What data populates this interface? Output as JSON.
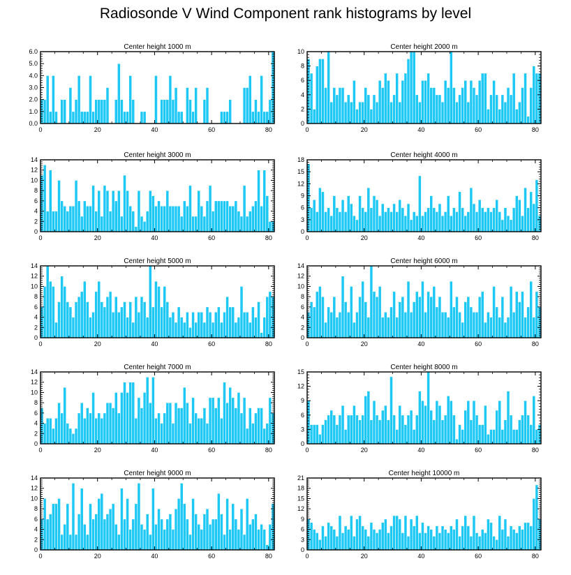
{
  "title": "Radiosonde V Wind Component rank histograms by level",
  "colors": {
    "bar": "#1ec8f5",
    "bar_edge": "#ffffff",
    "axis": "#000000"
  },
  "chart_data": [
    {
      "type": "bar",
      "title": "Center height 1000 m",
      "xlim": [
        0,
        82
      ],
      "xticks": [
        0,
        20,
        40,
        60,
        80
      ],
      "ylim": [
        0,
        6
      ],
      "yticks": [
        0,
        1,
        2,
        3,
        4,
        5,
        6
      ],
      "ytick_labels": [
        "0.0",
        "1.0",
        "2.0",
        "3.0",
        "4.0",
        "5.0",
        "6.0"
      ],
      "values": [
        2,
        2,
        4,
        1,
        4,
        1,
        0,
        2,
        2,
        0,
        3,
        1,
        2,
        4,
        1,
        1,
        1,
        4,
        1,
        2,
        2,
        2,
        2,
        3,
        0,
        0,
        2,
        5,
        2,
        1,
        1,
        4,
        2,
        0,
        0,
        1,
        1,
        0,
        0,
        0,
        4,
        0,
        2,
        2,
        2,
        4,
        2,
        3,
        1,
        1,
        0,
        3,
        2,
        1,
        3,
        0,
        0,
        2,
        3,
        0,
        0,
        0,
        0,
        1,
        1,
        1,
        2,
        0,
        0,
        0,
        0,
        3,
        3,
        4,
        1,
        2,
        1,
        4,
        1,
        1,
        2,
        6
      ]
    },
    {
      "type": "bar",
      "title": "Center height 2000 m",
      "xlim": [
        0,
        82
      ],
      "xticks": [
        0,
        20,
        40,
        60,
        80
      ],
      "ylim": [
        0,
        10
      ],
      "yticks": [
        0,
        2,
        4,
        6,
        8,
        10
      ],
      "ytick_labels": [
        "0",
        "2",
        "4",
        "6",
        "8",
        "10"
      ],
      "values": [
        9,
        7,
        2,
        8,
        9,
        9,
        5,
        10,
        3,
        5,
        4,
        5,
        5,
        3,
        4,
        3,
        6,
        2,
        3,
        3,
        5,
        4,
        2,
        4,
        3,
        6,
        5,
        7,
        6,
        3,
        4,
        7,
        3,
        6,
        7,
        9,
        10,
        10,
        4,
        3,
        6,
        6,
        7,
        5,
        5,
        4,
        4,
        3,
        6,
        5,
        10,
        5,
        3,
        4,
        5,
        6,
        3,
        6,
        5,
        4,
        6,
        7,
        7,
        2,
        4,
        6,
        4,
        2,
        4,
        3,
        5,
        4,
        7,
        2,
        3,
        5,
        7,
        1,
        5,
        8,
        7,
        7
      ]
    },
    {
      "type": "bar",
      "title": "Center height 3000 m",
      "xlim": [
        0,
        82
      ],
      "xticks": [
        0,
        20,
        40,
        60,
        80
      ],
      "ylim": [
        0,
        14
      ],
      "yticks": [
        0,
        2,
        4,
        6,
        8,
        10,
        12,
        14
      ],
      "ytick_labels": [
        "0",
        "2",
        "4",
        "6",
        "8",
        "10",
        "12",
        "14"
      ],
      "values": [
        11,
        13,
        4,
        12,
        4,
        4,
        10,
        6,
        5,
        4,
        5,
        5,
        10,
        6,
        3,
        6,
        5,
        5,
        9,
        4,
        8,
        3,
        9,
        8,
        4,
        8,
        6,
        8,
        3,
        11,
        8,
        5,
        4,
        1,
        8,
        3,
        2,
        4,
        8,
        7,
        5,
        6,
        5,
        5,
        8,
        5,
        5,
        5,
        5,
        3,
        6,
        5,
        9,
        3,
        3,
        8,
        5,
        3,
        6,
        9,
        4,
        6,
        6,
        6,
        6,
        6,
        5,
        5,
        6,
        4,
        3,
        9,
        3,
        4,
        5,
        6,
        12,
        5,
        12,
        7,
        2,
        2
      ]
    },
    {
      "type": "bar",
      "title": "Center height 4000 m",
      "xlim": [
        0,
        82
      ],
      "xticks": [
        0,
        20,
        40,
        60,
        80
      ],
      "ylim": [
        0,
        18
      ],
      "yticks": [
        0,
        3,
        6,
        9,
        12,
        15,
        18
      ],
      "ytick_labels": [
        "0",
        "3",
        "6",
        "9",
        "12",
        "15",
        "18"
      ],
      "values": [
        17,
        6,
        8,
        5,
        11,
        10,
        5,
        6,
        4,
        9,
        6,
        5,
        8,
        5,
        9,
        7,
        4,
        3,
        9,
        6,
        5,
        11,
        6,
        9,
        8,
        4,
        7,
        5,
        6,
        5,
        7,
        5,
        8,
        6,
        4,
        7,
        3,
        5,
        4,
        14,
        4,
        5,
        6,
        9,
        6,
        5,
        7,
        4,
        5,
        9,
        4,
        6,
        5,
        10,
        6,
        4,
        5,
        11,
        7,
        5,
        8,
        6,
        5,
        6,
        5,
        6,
        8,
        5,
        3,
        6,
        4,
        3,
        6,
        9,
        8,
        4,
        11,
        6,
        10,
        7,
        13,
        4
      ]
    },
    {
      "type": "bar",
      "title": "Center height 5000 m",
      "xlim": [
        0,
        82
      ],
      "xticks": [
        0,
        20,
        40,
        60,
        80
      ],
      "ylim": [
        0,
        14
      ],
      "yticks": [
        0,
        2,
        4,
        6,
        8,
        10,
        12,
        14
      ],
      "ytick_labels": [
        "0",
        "2",
        "4",
        "6",
        "8",
        "10",
        "12",
        "14"
      ],
      "values": [
        6,
        10,
        14,
        11,
        10,
        3,
        7,
        12,
        10,
        7,
        6,
        4,
        7,
        8,
        9,
        11,
        7,
        4,
        5,
        9,
        11,
        7,
        6,
        8,
        9,
        5,
        8,
        5,
        6,
        7,
        4,
        7,
        3,
        8,
        5,
        8,
        7,
        4,
        14,
        6,
        11,
        10,
        6,
        10,
        7,
        4,
        5,
        3,
        6,
        4,
        3,
        5,
        2,
        5,
        3,
        5,
        5,
        3,
        6,
        5,
        3,
        5,
        6,
        3,
        5,
        8,
        6,
        6,
        3,
        4,
        10,
        5,
        5,
        3,
        6,
        4,
        7,
        1,
        4,
        8,
        9,
        8
      ]
    },
    {
      "type": "bar",
      "title": "Center height 6000 m",
      "xlim": [
        0,
        82
      ],
      "xticks": [
        0,
        20,
        40,
        60,
        80
      ],
      "ylim": [
        0,
        14
      ],
      "yticks": [
        0,
        2,
        4,
        6,
        8,
        10,
        12,
        14
      ],
      "ytick_labels": [
        "0",
        "2",
        "4",
        "6",
        "8",
        "10",
        "12",
        "14"
      ],
      "values": [
        5,
        7,
        6,
        9,
        10,
        8,
        3,
        6,
        5,
        8,
        4,
        5,
        12,
        7,
        5,
        10,
        3,
        5,
        8,
        11,
        7,
        4,
        14,
        9,
        8,
        10,
        4,
        5,
        4,
        6,
        9,
        4,
        7,
        8,
        5,
        11,
        5,
        7,
        9,
        8,
        11,
        5,
        9,
        8,
        10,
        6,
        8,
        5,
        5,
        4,
        11,
        6,
        8,
        5,
        3,
        7,
        8,
        6,
        5,
        5,
        8,
        9,
        3,
        5,
        4,
        10,
        6,
        4,
        8,
        3,
        4,
        10,
        5,
        9,
        7,
        9,
        4,
        6,
        11,
        4,
        9,
        6
      ]
    },
    {
      "type": "bar",
      "title": "Center height 7000 m",
      "xlim": [
        0,
        82
      ],
      "xticks": [
        0,
        20,
        40,
        60,
        80
      ],
      "ylim": [
        0,
        14
      ],
      "yticks": [
        0,
        2,
        4,
        6,
        8,
        10,
        12,
        14
      ],
      "ytick_labels": [
        "0",
        "2",
        "4",
        "6",
        "8",
        "10",
        "12",
        "14"
      ],
      "values": [
        7,
        4,
        5,
        5,
        3,
        5,
        8,
        6,
        11,
        4,
        3,
        2,
        3,
        6,
        8,
        5,
        7,
        6,
        10,
        5,
        6,
        5,
        6,
        8,
        8,
        7,
        10,
        6,
        10,
        12,
        10,
        12,
        12,
        5,
        9,
        7,
        10,
        13,
        8,
        13,
        5,
        6,
        4,
        6,
        8,
        8,
        4,
        8,
        7,
        7,
        11,
        8,
        4,
        9,
        6,
        5,
        5,
        7,
        4,
        9,
        9,
        7,
        9,
        5,
        12,
        8,
        11,
        9,
        7,
        10,
        6,
        9,
        3,
        7,
        4,
        6,
        7,
        7,
        3,
        4,
        9,
        6
      ]
    },
    {
      "type": "bar",
      "title": "Center height 8000 m",
      "xlim": [
        0,
        82
      ],
      "xticks": [
        0,
        20,
        40,
        60,
        80
      ],
      "ylim": [
        0,
        15
      ],
      "yticks": [
        0,
        3,
        6,
        9,
        12,
        15
      ],
      "ytick_labels": [
        "0",
        "3",
        "6",
        "9",
        "12",
        "15"
      ],
      "values": [
        9,
        4,
        4,
        4,
        2,
        4,
        5,
        6,
        7,
        6,
        4,
        6,
        8,
        3,
        6,
        6,
        8,
        6,
        5,
        6,
        10,
        11,
        5,
        9,
        6,
        5,
        7,
        8,
        5,
        14,
        6,
        3,
        8,
        6,
        4,
        6,
        7,
        3,
        6,
        11,
        9,
        8,
        15,
        7,
        5,
        9,
        8,
        5,
        6,
        10,
        9,
        6,
        1,
        4,
        3,
        7,
        9,
        5,
        9,
        6,
        4,
        4,
        8,
        2,
        3,
        3,
        7,
        9,
        3,
        5,
        11,
        6,
        3,
        3,
        5,
        6,
        9,
        6,
        4,
        10,
        3,
        4
      ]
    },
    {
      "type": "bar",
      "title": "Center height 9000 m",
      "xlim": [
        0,
        82
      ],
      "xticks": [
        0,
        20,
        40,
        60,
        80
      ],
      "ylim": [
        0,
        14
      ],
      "yticks": [
        0,
        2,
        4,
        6,
        8,
        10,
        12,
        14
      ],
      "ytick_labels": [
        "0",
        "2",
        "4",
        "6",
        "8",
        "10",
        "12",
        "14"
      ],
      "values": [
        6,
        10,
        6,
        7,
        9,
        9,
        10,
        3,
        5,
        9,
        3,
        13,
        3,
        7,
        12,
        5,
        3,
        9,
        6,
        7,
        10,
        11,
        6,
        7,
        8,
        9,
        5,
        3,
        12,
        6,
        10,
        4,
        6,
        9,
        13,
        5,
        4,
        7,
        3,
        12,
        5,
        8,
        6,
        4,
        6,
        7,
        4,
        8,
        10,
        13,
        9,
        6,
        3,
        10,
        7,
        5,
        4,
        7,
        8,
        5,
        6,
        6,
        11,
        7,
        3,
        10,
        4,
        9,
        6,
        4,
        8,
        3,
        10,
        5,
        6,
        7,
        4,
        5,
        4,
        1,
        5,
        9
      ]
    },
    {
      "type": "bar",
      "title": "Center height 10000 m",
      "xlim": [
        0,
        82
      ],
      "xticks": [
        0,
        20,
        40,
        60,
        80
      ],
      "ylim": [
        0,
        21
      ],
      "yticks": [
        0,
        3,
        6,
        9,
        12,
        15,
        18,
        21
      ],
      "ytick_labels": [
        "0",
        "3",
        "6",
        "9",
        "12",
        "15",
        "18",
        "21"
      ],
      "values": [
        9,
        8,
        6,
        5,
        3,
        7,
        4,
        8,
        7,
        6,
        4,
        10,
        5,
        7,
        6,
        10,
        4,
        9,
        10,
        7,
        6,
        4,
        8,
        6,
        5,
        6,
        8,
        9,
        5,
        7,
        10,
        10,
        9,
        5,
        10,
        4,
        9,
        7,
        10,
        5,
        8,
        5,
        7,
        6,
        4,
        7,
        5,
        7,
        6,
        5,
        7,
        6,
        9,
        4,
        7,
        10,
        7,
        4,
        10,
        5,
        4,
        6,
        5,
        9,
        8,
        4,
        3,
        10,
        6,
        9,
        4,
        7,
        6,
        5,
        7,
        6,
        8,
        8,
        7,
        15,
        19,
        9
      ]
    }
  ]
}
